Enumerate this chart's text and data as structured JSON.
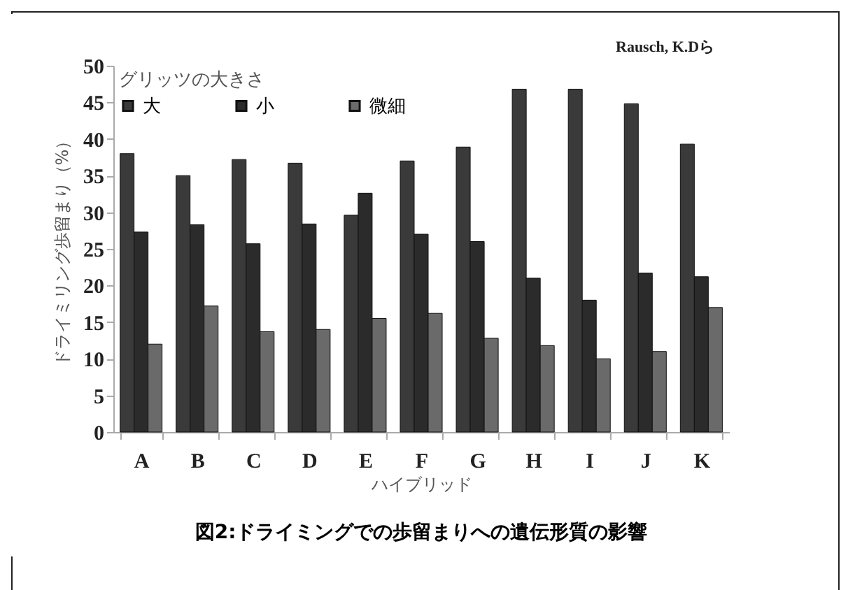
{
  "chart_data": {
    "type": "bar",
    "title": "図2:ドライミングでの歩留まりへの遺伝形質の影響",
    "xlabel": "ハイブリッド",
    "ylabel": "ドライミリング歩留まり（%）",
    "legend_title": "グリッツの大きさ",
    "annotations": [
      "Rausch, K.Dら"
    ],
    "categories": [
      "A",
      "B",
      "C",
      "D",
      "E",
      "F",
      "G",
      "H",
      "I",
      "J",
      "K"
    ],
    "series": [
      {
        "name": "大",
        "color": "#3a3a3a",
        "values": [
          38,
          35,
          37.2,
          36.7,
          29.6,
          37,
          38.9,
          46.8,
          46.8,
          44.8,
          39.3
        ]
      },
      {
        "name": "小",
        "color": "#2b2b2b",
        "values": [
          27.3,
          28.3,
          25.7,
          28.4,
          32.6,
          27,
          26,
          21,
          18,
          21.7,
          21.2
        ]
      },
      {
        "name": "微細",
        "color": "#6a6a6a",
        "values": [
          12,
          17.2,
          13.7,
          14,
          15.5,
          16.2,
          12.8,
          11.8,
          10,
          11,
          17
        ]
      }
    ],
    "ylim": [
      0,
      50
    ],
    "yticks": [
      0,
      5,
      10,
      15,
      20,
      25,
      30,
      35,
      40,
      45,
      50
    ],
    "grid": false,
    "legend": "top left"
  }
}
